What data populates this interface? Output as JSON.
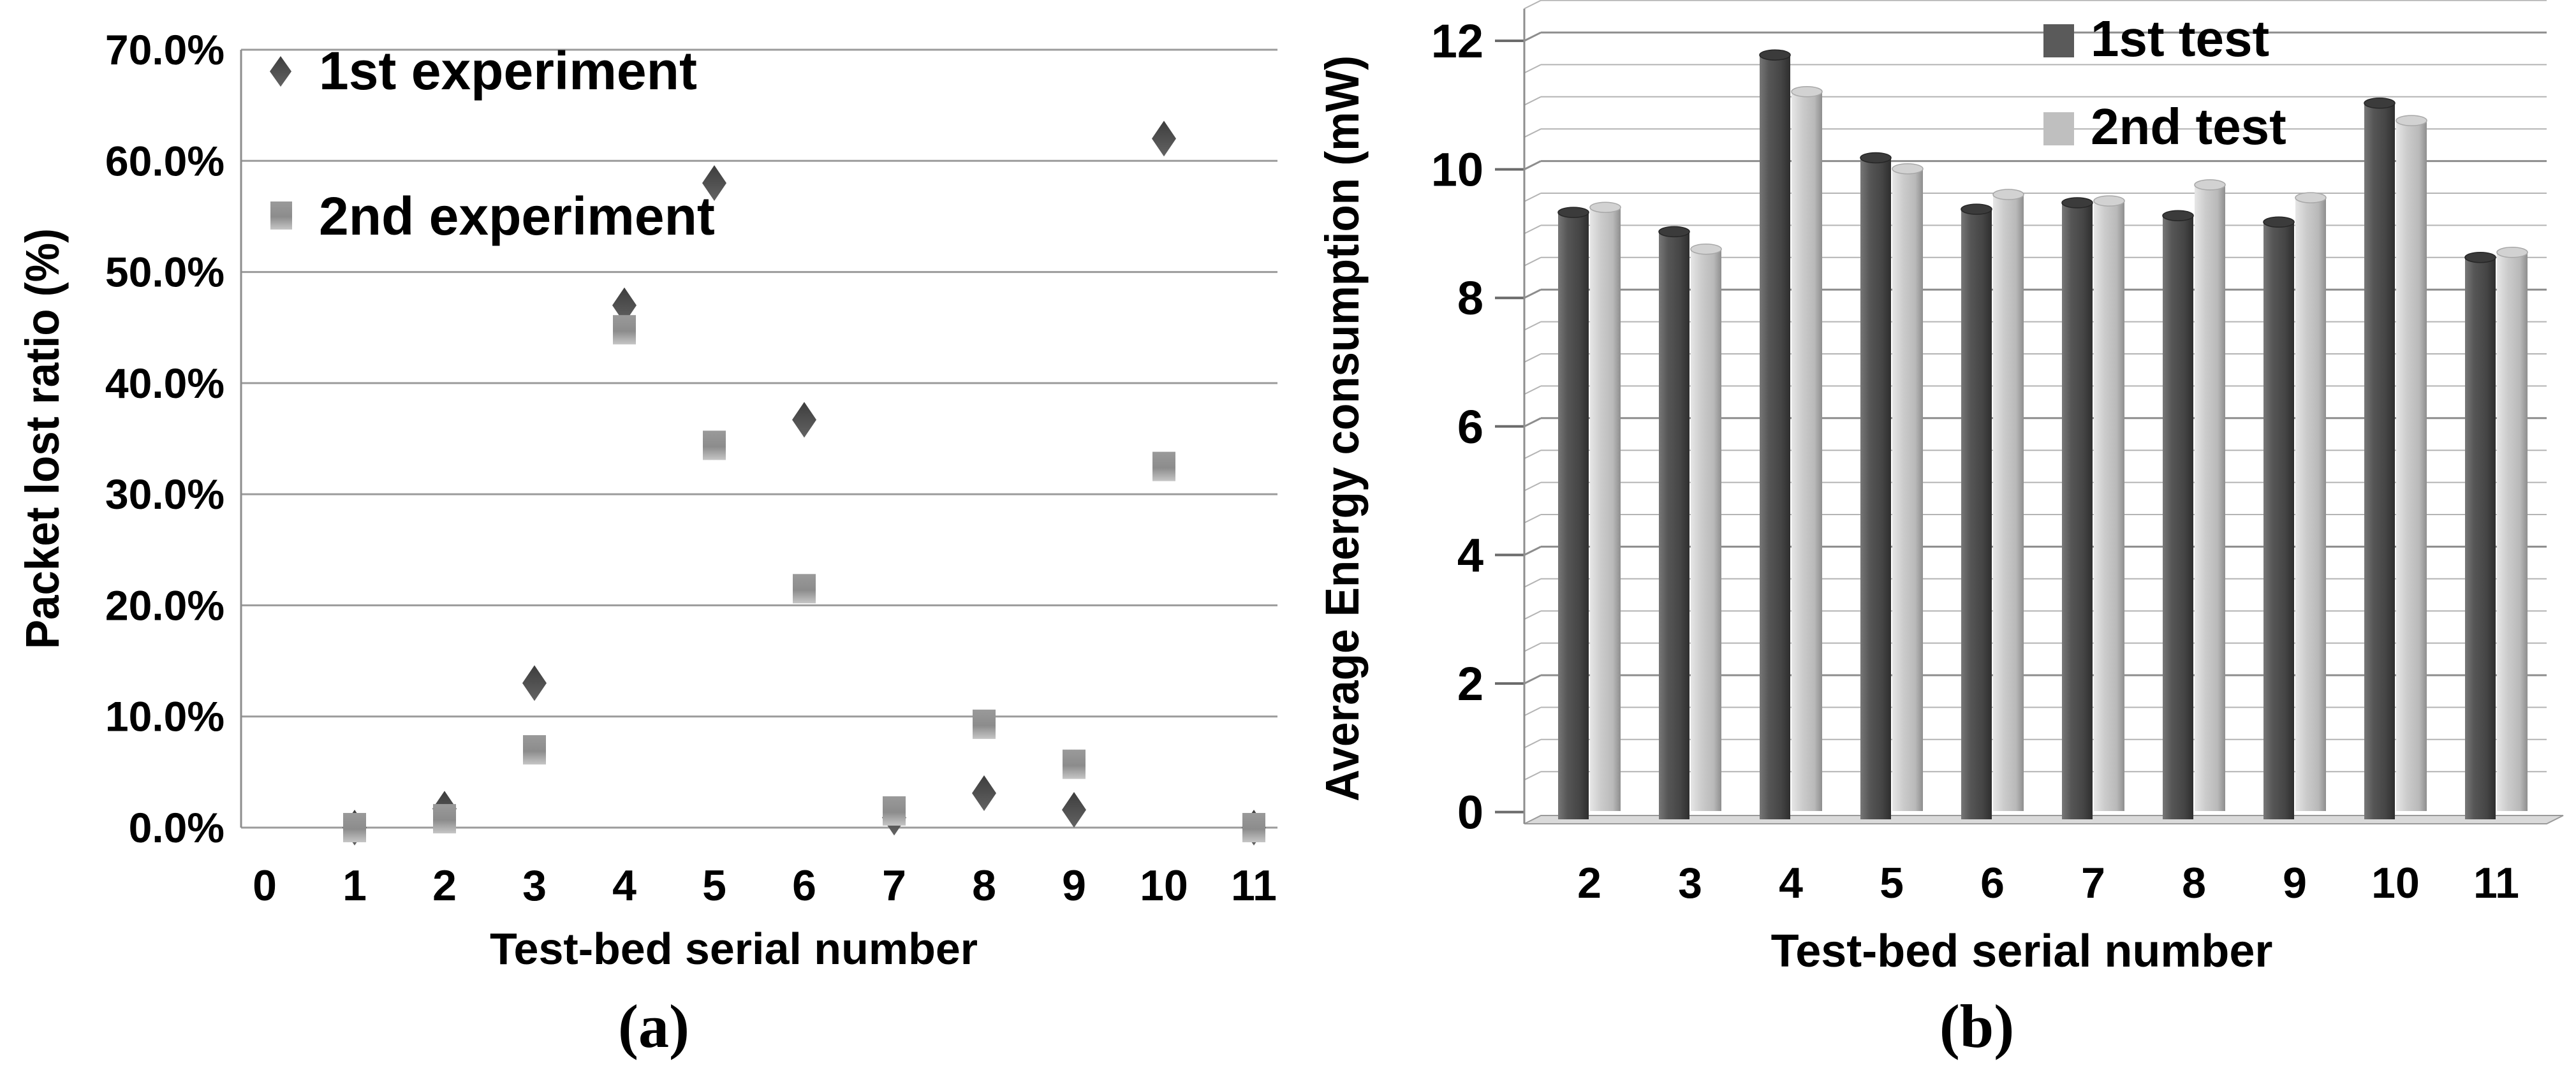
{
  "figure": {
    "captions": {
      "a": "(a)",
      "b": "(b)"
    }
  },
  "colors": {
    "background": "#ffffff",
    "text": "#000000",
    "grid_a": "#9b9b9b",
    "grid_b_minor": "#b4b4b4",
    "grid_b_major": "#8d8d8d",
    "axis": "#8d8d8d",
    "diamond_marker": "#474747",
    "square_marker": "#979797",
    "bar_dark": "#4f4f4f",
    "bar_light": "#c3c3c3",
    "floor": "#dadada"
  },
  "chart_data": [
    {
      "id": "packet-loss-scatter",
      "type": "scatter",
      "title": "",
      "xlabel": "Test-bed serial number",
      "ylabel": "Packet lost ratio (%)",
      "x_ticks": [
        0,
        1,
        2,
        3,
        4,
        5,
        6,
        7,
        8,
        9,
        10,
        11
      ],
      "xlim": [
        0,
        11
      ],
      "ylim": [
        0,
        70
      ],
      "ytick_step": 10,
      "ytick_labels": [
        "0.0%",
        "10.0%",
        "20.0%",
        "30.0%",
        "40.0%",
        "50.0%",
        "60.0%",
        "70.0%"
      ],
      "grid": "horizontal",
      "legend_position": "top-left",
      "series": [
        {
          "name": "1st experiment",
          "marker": "diamond",
          "color": "#474747",
          "x": [
            1,
            2,
            3,
            4,
            5,
            6,
            7,
            8,
            9,
            10,
            11
          ],
          "y": [
            0.0,
            1.7,
            13.0,
            47.0,
            58.0,
            36.7,
            0.9,
            3.1,
            1.6,
            62.0,
            0.0
          ]
        },
        {
          "name": "2nd experiment",
          "marker": "square",
          "color": "#979797",
          "x": [
            1,
            2,
            3,
            4,
            5,
            6,
            7,
            8,
            9,
            10,
            11
          ],
          "y": [
            0.0,
            0.8,
            7.0,
            44.8,
            34.4,
            21.5,
            1.5,
            9.3,
            5.7,
            32.5,
            0.0
          ]
        }
      ]
    },
    {
      "id": "energy-consumption-bars",
      "type": "bar",
      "style": "3d-column",
      "title": "",
      "xlabel": "Test-bed serial number",
      "ylabel": "Average Energy consumption (mW)",
      "categories": [
        "2",
        "3",
        "4",
        "5",
        "6",
        "7",
        "8",
        "9",
        "10",
        "11"
      ],
      "ylim": [
        0,
        12.5
      ],
      "ytick_step": 2,
      "ytick_labels": [
        "0",
        "2",
        "4",
        "6",
        "8",
        "10",
        "12"
      ],
      "minor_grid_step": 0.5,
      "legend_position": "top-right",
      "series": [
        {
          "name": "1st test",
          "color": "#4f4f4f",
          "values": [
            9.3,
            9.0,
            11.75,
            10.15,
            9.35,
            9.45,
            9.25,
            9.15,
            11.0,
            8.6
          ]
        },
        {
          "name": "2nd test",
          "color": "#c3c3c3",
          "values": [
            9.25,
            8.6,
            11.05,
            9.85,
            9.45,
            9.35,
            9.6,
            9.4,
            10.6,
            8.55
          ]
        }
      ]
    }
  ]
}
